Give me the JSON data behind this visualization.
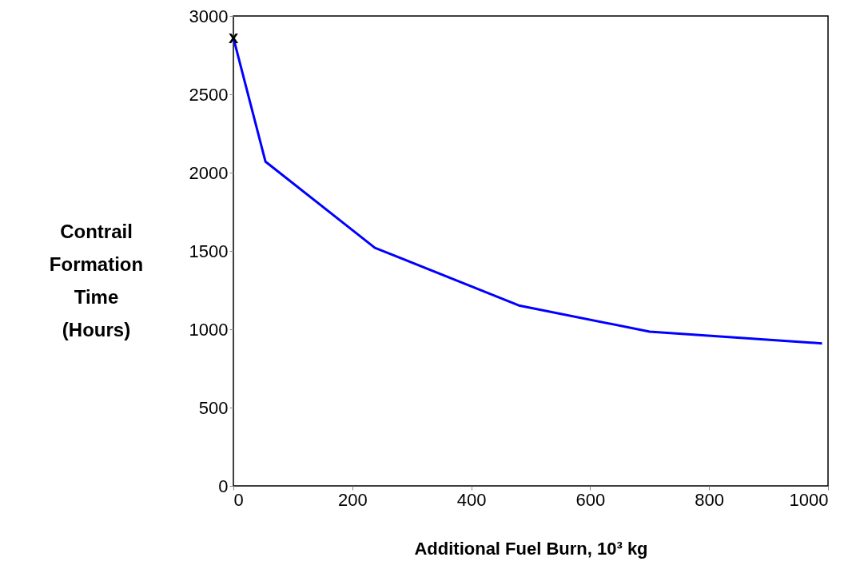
{
  "chart_data": {
    "type": "line",
    "xlabel": "Additional Fuel Burn, 10³ kg",
    "ylabel": "Contrail Formation Time (Hours)",
    "x": [
      0,
      54,
      238,
      480,
      700,
      990
    ],
    "series": [
      {
        "color": "#0000ff",
        "values": [
          2860,
          2070,
          1520,
          1152,
          985,
          910
        ]
      }
    ],
    "xlim": [
      0,
      1000
    ],
    "xticks": [
      0,
      200,
      400,
      600,
      800,
      1000
    ],
    "ylim": [
      0,
      3000
    ],
    "yticks": [
      0,
      500,
      1000,
      1500,
      2000,
      2500,
      3000
    ],
    "annotations": [
      {
        "text": "x",
        "x": 0,
        "y": 2860
      }
    ],
    "grid": false,
    "marker": "none",
    "line_style": "solid"
  }
}
